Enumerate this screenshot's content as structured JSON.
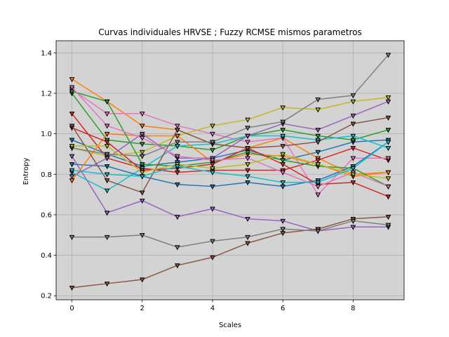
{
  "chart_data": {
    "type": "line",
    "title": "Curvas individuales HRVSE ; Fuzzy RCMSE mismos parametros",
    "xlabel": "Scales",
    "ylabel": "Entropy",
    "xlim": [
      -0.45,
      9.45
    ],
    "ylim": [
      0.18,
      1.46
    ],
    "xticks": [
      0,
      2,
      4,
      6,
      8
    ],
    "yticks": [
      0.2,
      0.4,
      0.6,
      0.8,
      1.0,
      1.2,
      1.4
    ],
    "grid": true,
    "marker": "triangle-down",
    "x": [
      0,
      1,
      2,
      3,
      4,
      5,
      6,
      7,
      8,
      9
    ],
    "series": [
      {
        "color": "#1f77b4",
        "values": [
          0.97,
          0.9,
          0.84,
          0.86,
          0.88,
          0.92,
          0.87,
          0.91,
          0.96,
          0.97
        ]
      },
      {
        "color": "#ff7f0e",
        "values": [
          1.27,
          1.16,
          1.04,
          1.02,
          0.95,
          0.93,
          0.98,
          0.88,
          0.8,
          0.81
        ]
      },
      {
        "color": "#2ca02c",
        "values": [
          1.2,
          0.97,
          0.95,
          0.94,
          0.92,
          0.99,
          1.02,
          0.99,
          0.97,
          1.02
        ]
      },
      {
        "color": "#d62728",
        "values": [
          1.1,
          0.88,
          0.83,
          0.81,
          0.82,
          0.82,
          0.82,
          0.87,
          0.93,
          0.87
        ]
      },
      {
        "color": "#9467bd",
        "values": [
          0.89,
          0.61,
          0.67,
          0.59,
          0.63,
          0.58,
          0.57,
          0.52,
          0.54,
          0.54
        ]
      },
      {
        "color": "#8c564b",
        "values": [
          0.24,
          0.26,
          0.28,
          0.35,
          0.39,
          0.46,
          0.51,
          0.53,
          0.58,
          0.59
        ]
      },
      {
        "color": "#e377c2",
        "values": [
          1.22,
          1.1,
          1.1,
          1.04,
          1.0,
          0.96,
          0.98,
          0.7,
          0.88,
          0.88
        ]
      },
      {
        "color": "#7f7f7f",
        "values": [
          0.49,
          0.49,
          0.5,
          0.44,
          0.47,
          0.49,
          0.53,
          0.52,
          0.57,
          0.55
        ]
      },
      {
        "color": "#bcbd22",
        "values": [
          0.93,
          0.89,
          0.91,
          0.99,
          1.04,
          1.07,
          1.13,
          1.12,
          1.16,
          1.18
        ]
      },
      {
        "color": "#17becf",
        "values": [
          0.81,
          0.72,
          0.83,
          0.94,
          0.95,
          0.99,
          0.99,
          0.97,
          0.99,
          0.93
        ]
      },
      {
        "color": "#1f77b4",
        "values": [
          0.85,
          0.84,
          0.79,
          0.75,
          0.74,
          0.76,
          0.74,
          0.77,
          0.84,
          0.96
        ]
      },
      {
        "color": "#ff7f0e",
        "values": [
          0.77,
          1.0,
          0.99,
          0.99,
          0.86,
          0.9,
          0.89,
          0.85,
          0.79,
          0.81
        ]
      },
      {
        "color": "#2ca02c",
        "values": [
          1.21,
          1.16,
          0.85,
          0.84,
          0.86,
          0.91,
          0.87,
          0.84,
          0.83,
          0.74
        ]
      },
      {
        "color": "#d62728",
        "values": [
          1.03,
          0.96,
          0.82,
          0.83,
          0.85,
          0.93,
          0.85,
          0.75,
          0.76,
          0.69
        ]
      },
      {
        "color": "#9467bd",
        "values": [
          0.79,
          0.88,
          1.0,
          0.88,
          0.88,
          0.99,
          1.05,
          1.02,
          1.09,
          1.16
        ]
      },
      {
        "color": "#8c564b",
        "values": [
          1.04,
          0.77,
          0.71,
          1.02,
          0.95,
          0.93,
          0.94,
          0.96,
          1.05,
          1.08
        ]
      },
      {
        "color": "#e377c2",
        "values": [
          1.23,
          1.04,
          0.98,
          0.89,
          0.87,
          0.88,
          0.81,
          0.74,
          0.81,
          0.74
        ]
      },
      {
        "color": "#7f7f7f",
        "values": [
          0.93,
          0.9,
          0.89,
          0.96,
          0.96,
          1.03,
          1.06,
          1.17,
          1.19,
          1.39
        ]
      },
      {
        "color": "#bcbd22",
        "values": [
          0.94,
          0.94,
          0.81,
          0.85,
          0.83,
          0.85,
          0.9,
          0.85,
          0.8,
          0.78
        ]
      },
      {
        "color": "#17becf",
        "values": [
          0.82,
          0.8,
          0.79,
          0.84,
          0.81,
          0.79,
          0.76,
          0.76,
          0.83,
          0.96
        ]
      }
    ]
  }
}
